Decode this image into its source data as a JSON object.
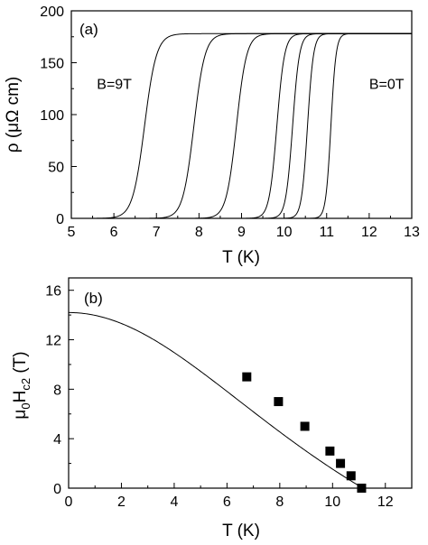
{
  "chart_data": [
    {
      "type": "line",
      "panel_label": "(a)",
      "xlabel": "T (K)",
      "ylabel": "ρ (μΩ cm)",
      "xlim": [
        5,
        13
      ],
      "ylim": [
        0,
        200
      ],
      "xticks": [
        5,
        6,
        7,
        8,
        9,
        10,
        11,
        12,
        13
      ],
      "yticks": [
        0,
        50,
        100,
        150,
        200
      ],
      "annotations": [
        {
          "text": "B=9T",
          "x": 5.6,
          "y": 125
        },
        {
          "text": "B=0T",
          "x": 12.0,
          "y": 125
        }
      ],
      "rho_normal": 178,
      "series": [
        {
          "tc_mid": 6.72,
          "width": 0.14
        },
        {
          "tc_mid": 7.88,
          "width": 0.13
        },
        {
          "tc_mid": 8.88,
          "width": 0.12
        },
        {
          "tc_mid": 9.83,
          "width": 0.09
        },
        {
          "tc_mid": 10.2,
          "width": 0.08
        },
        {
          "tc_mid": 10.55,
          "width": 0.07
        },
        {
          "tc_mid": 11.1,
          "width": 0.06
        }
      ],
      "grid": false
    },
    {
      "type": "scatter",
      "panel_label": "(b)",
      "xlabel": "T (K)",
      "ylabel": "μ0Hc2 (T)",
      "xlim": [
        0,
        13
      ],
      "ylim": [
        0,
        17
      ],
      "xticks": [
        0,
        2,
        4,
        6,
        8,
        10,
        12
      ],
      "yticks": [
        0,
        4,
        8,
        12,
        16
      ],
      "points": [
        {
          "x": 6.75,
          "y": 9
        },
        {
          "x": 7.95,
          "y": 7
        },
        {
          "x": 8.95,
          "y": 5
        },
        {
          "x": 9.9,
          "y": 3
        },
        {
          "x": 10.3,
          "y": 2
        },
        {
          "x": 10.7,
          "y": 1
        },
        {
          "x": 11.1,
          "y": 0
        }
      ],
      "fit_line": {
        "hc2_0": 14.2,
        "tc": 11.15
      },
      "grid": false
    }
  ]
}
